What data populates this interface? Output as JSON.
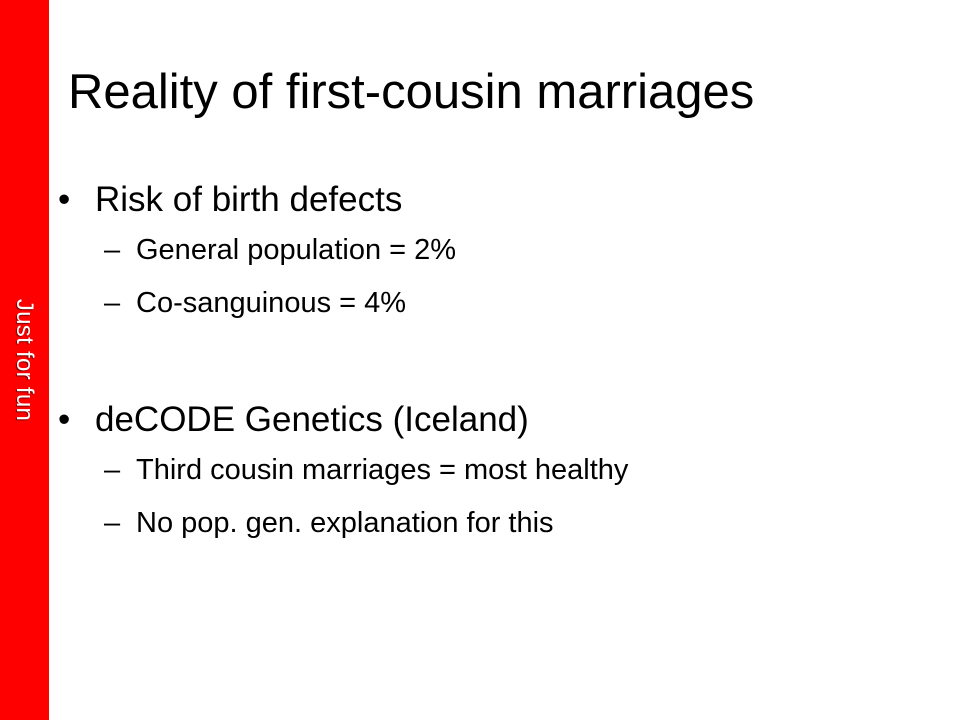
{
  "side_label": "Just for fun",
  "colors": {
    "band": "#ff0000",
    "band_text": "#ffffff",
    "text": "#000000",
    "background": "#ffffff"
  },
  "title": "Reality of first-cousin marriages",
  "bullets": [
    {
      "marker": "•",
      "text": "Risk of birth defects",
      "subitems": [
        {
          "marker": "–",
          "text": "General population = 2%"
        },
        {
          "marker": "–",
          "text": "Co-sanguinous = 4%"
        }
      ]
    },
    {
      "marker": "•",
      "text": "deCODE Genetics (Iceland)",
      "subitems": [
        {
          "marker": "–",
          "text": "Third cousin marriages = most healthy"
        },
        {
          "marker": "–",
          "text": "No pop. gen. explanation for this"
        }
      ]
    }
  ]
}
